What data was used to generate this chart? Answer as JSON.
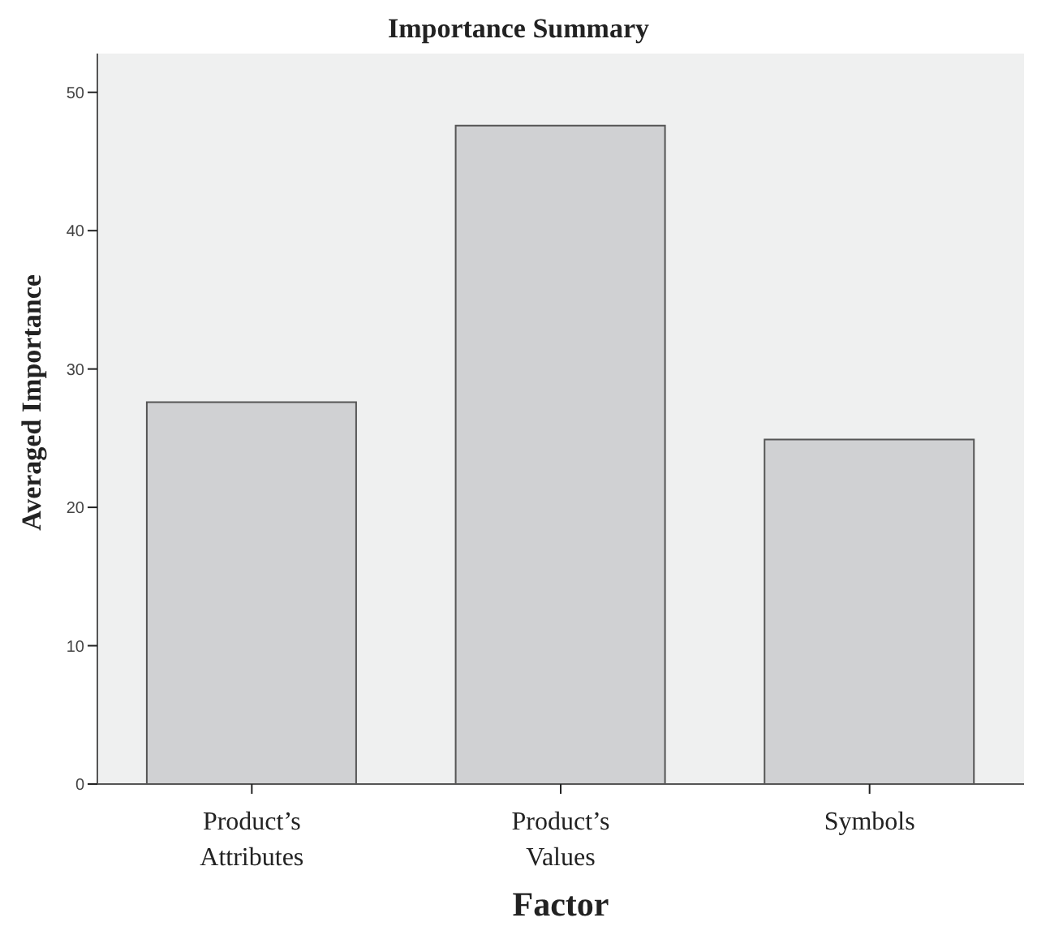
{
  "chart_data": {
    "type": "bar",
    "title": "Importance Summary",
    "xlabel": "Factor",
    "ylabel": "Averaged Importance",
    "categories": [
      "Product’s Attributes",
      "Product’s Values",
      "Symbols"
    ],
    "values": [
      27.6,
      47.6,
      24.9
    ],
    "color": "#d0d1d3",
    "ylim": [
      0,
      52.8
    ],
    "yticks": [
      0,
      10,
      20,
      30,
      40,
      50
    ],
    "grid": false
  }
}
